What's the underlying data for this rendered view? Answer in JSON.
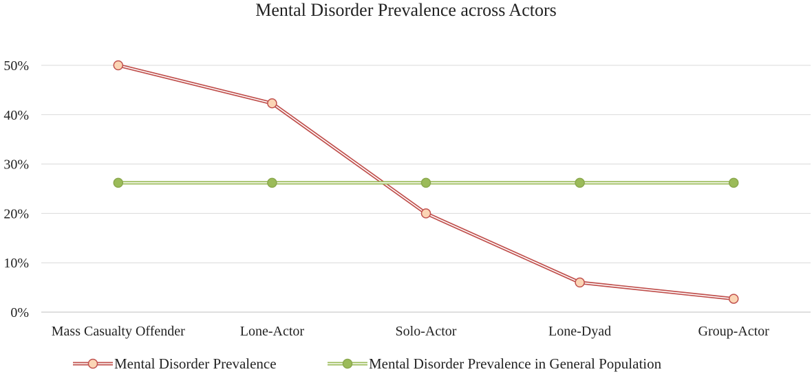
{
  "chart_data": {
    "type": "line",
    "title": "Mental Disorder Prevalence across Actors",
    "xlabel": "",
    "ylabel": "",
    "categories": [
      "Mass Casualty Offender",
      "Lone-Actor",
      "Solo-Actor",
      "Lone-Dyad",
      "Group-Actor"
    ],
    "ylim": [
      0,
      50
    ],
    "y_ticks": [
      "0%",
      "10%",
      "20%",
      "30%",
      "40%",
      "50%"
    ],
    "y_tick_values": [
      0,
      10,
      20,
      30,
      40,
      50
    ],
    "grid": true,
    "legend_position": "bottom",
    "series": [
      {
        "name": "Mental Disorder Prevalence",
        "values": [
          50,
          42.3,
          20,
          6,
          2.7
        ],
        "line_color": "#c0504d",
        "marker_fill": "#fbd5b5"
      },
      {
        "name": "Mental Disorder Prevalence in General Population",
        "values": [
          26.2,
          26.2,
          26.2,
          26.2,
          26.2
        ],
        "line_color": "#9bbb59",
        "marker_fill": "#9bbb59"
      }
    ]
  }
}
